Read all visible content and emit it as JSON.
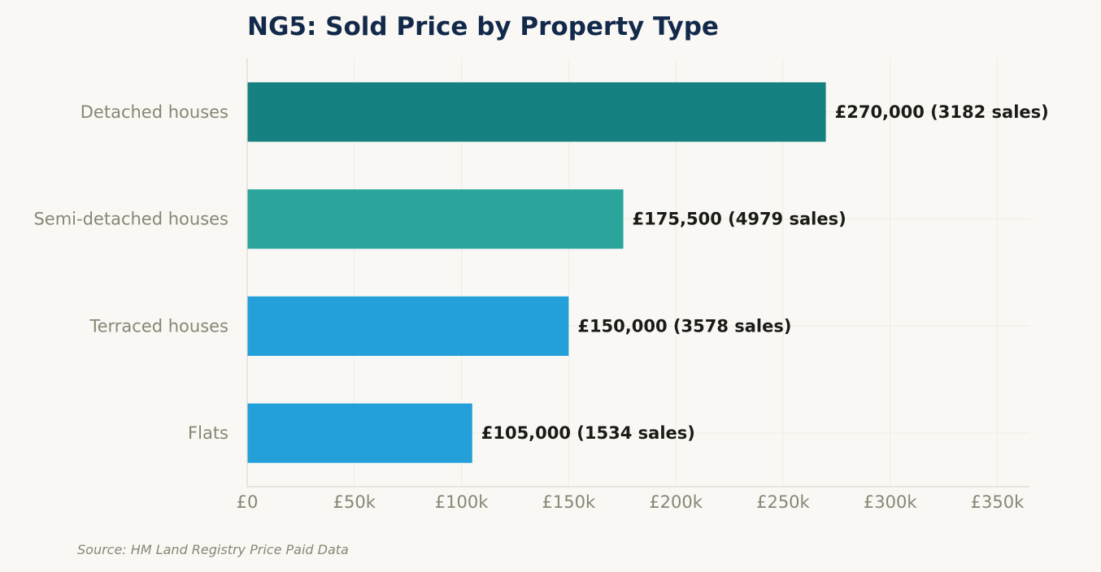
{
  "chart_data": {
    "type": "bar",
    "orientation": "horizontal",
    "title": "NG5: Sold Price by Property Type",
    "categories": [
      "Detached houses",
      "Semi-detached houses",
      "Terraced houses",
      "Flats"
    ],
    "values": [
      270000,
      175500,
      150000,
      105000
    ],
    "sales": [
      3182,
      4979,
      3578,
      1534
    ],
    "data_labels": [
      "£270,000  (3182 sales)",
      "£175,500  (4979 sales)",
      "£150,000  (3578 sales)",
      "£105,000  (1534 sales)"
    ],
    "bar_colors": [
      "#178181",
      "#2ba59b",
      "#239fda",
      "#239fda"
    ],
    "xlim": [
      0,
      365000
    ],
    "x_ticks": [
      0,
      50000,
      100000,
      150000,
      200000,
      250000,
      300000,
      350000
    ],
    "x_tick_labels": [
      "£0",
      "£50k",
      "£100k",
      "£150k",
      "£200k",
      "£250k",
      "£300k",
      "£350k"
    ],
    "xlabel": "",
    "ylabel": "",
    "grid": true,
    "legend": false
  },
  "source_note": "Source: HM Land Registry Price Paid Data"
}
